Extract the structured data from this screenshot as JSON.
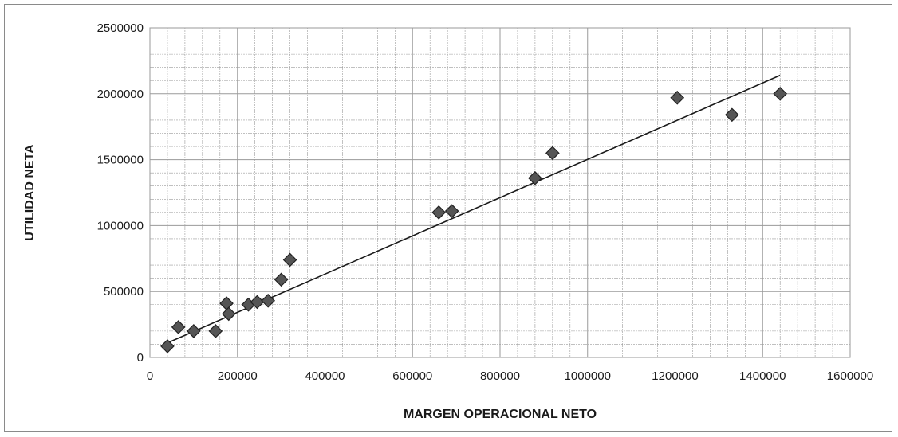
{
  "chart_data": {
    "type": "scatter",
    "xlabel": "MARGEN OPERACIONAL NETO",
    "ylabel": "UTILIDAD NETA",
    "xlim": [
      0,
      1600000
    ],
    "ylim": [
      0,
      2500000
    ],
    "x_ticks": [
      "0",
      "200000",
      "400000",
      "600000",
      "800000",
      "1000000",
      "1200000",
      "1400000",
      "1600000"
    ],
    "y_ticks": [
      "0",
      "500000",
      "1000000",
      "1500000",
      "2000000",
      "2500000"
    ],
    "grid": true,
    "marker": "diamond",
    "colors": {
      "marker": "#555555",
      "trendline": "#1a1a1a",
      "grid": "#9a9a9a"
    },
    "points": [
      {
        "x": 40000,
        "y": 85000
      },
      {
        "x": 65000,
        "y": 230000
      },
      {
        "x": 100000,
        "y": 200000
      },
      {
        "x": 150000,
        "y": 200000
      },
      {
        "x": 175000,
        "y": 410000
      },
      {
        "x": 180000,
        "y": 330000
      },
      {
        "x": 225000,
        "y": 400000
      },
      {
        "x": 245000,
        "y": 420000
      },
      {
        "x": 270000,
        "y": 430000
      },
      {
        "x": 300000,
        "y": 590000
      },
      {
        "x": 320000,
        "y": 740000
      },
      {
        "x": 660000,
        "y": 1100000
      },
      {
        "x": 690000,
        "y": 1110000
      },
      {
        "x": 880000,
        "y": 1360000
      },
      {
        "x": 920000,
        "y": 1550000
      },
      {
        "x": 1205000,
        "y": 1970000
      },
      {
        "x": 1330000,
        "y": 1840000
      },
      {
        "x": 1440000,
        "y": 2000000
      }
    ],
    "trendline": [
      {
        "x": 40000,
        "y": 110000
      },
      {
        "x": 1440000,
        "y": 2140000
      }
    ]
  }
}
